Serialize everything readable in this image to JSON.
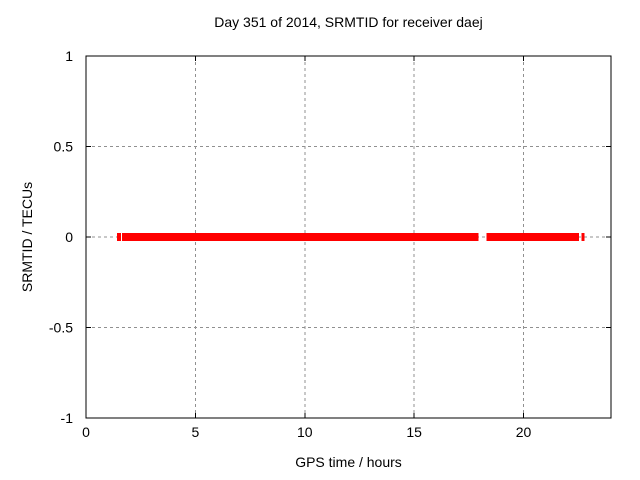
{
  "chart_data": {
    "type": "scatter",
    "title": "Day 351 of 2014, SRMTID for receiver daej",
    "xlabel": "GPS time / hours",
    "ylabel": "SRMTID / TECUs",
    "xlim": [
      0,
      24
    ],
    "ylim": [
      -1,
      1
    ],
    "xtick_values": [
      0,
      5,
      10,
      15,
      20
    ],
    "xtick_labels": [
      "0",
      "5",
      "10",
      "15",
      "20"
    ],
    "ytick_values": [
      1,
      0.5,
      0,
      -0.5,
      -1
    ],
    "ytick_labels": [
      "1",
      "0.5",
      "0",
      "-0.5",
      "-1"
    ],
    "grid": true,
    "legend": "none",
    "series": [
      {
        "name": "SRMTID",
        "y_value": 0,
        "marker": "thick-horizontal-red-band",
        "segments_hours": [
          {
            "start": 1.42,
            "end": 1.6
          },
          {
            "start": 1.65,
            "end": 17.94
          },
          {
            "start": 18.31,
            "end": 22.54
          },
          {
            "start": 22.65,
            "end": 22.79
          }
        ]
      }
    ],
    "colors": {
      "marker": "#ff0000",
      "grid": "#909090",
      "border": "#000000",
      "background": "#ffffff",
      "text": "#000000"
    }
  }
}
